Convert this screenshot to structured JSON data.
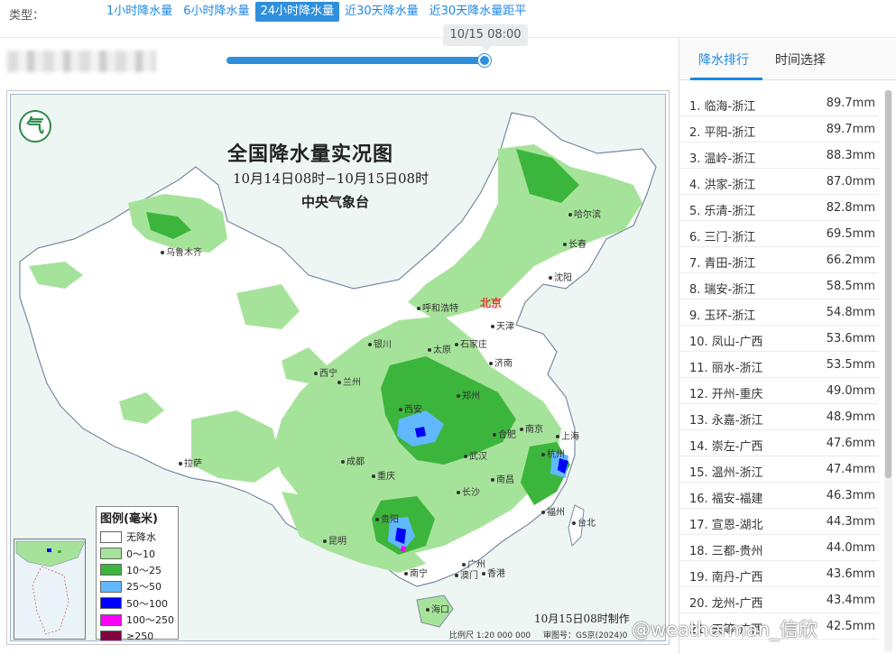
{
  "filter": {
    "type_label": "类型：",
    "tabs": [
      {
        "label": "1小时降水量"
      },
      {
        "label": "6小时降水量"
      },
      {
        "label": "24小时降水量",
        "active": true
      },
      {
        "label": "近30天降水量"
      },
      {
        "label": "近30天降水量距平"
      }
    ]
  },
  "slider": {
    "time_label": "10/15 08:00",
    "position": 1.0
  },
  "map": {
    "title": "全国降水量实况图",
    "subtitle": "10月14日08时−10月15日08时",
    "agency": "中央气象台",
    "made_time": "10月15日08时制作",
    "scale": "比例尺 1:20 000 000",
    "review": "审图号：GS京(2024)0",
    "cities": {
      "harbin": "哈尔滨",
      "changchun": "长春",
      "shenyang": "沈阳",
      "beijing": "北京",
      "tianjin": "天津",
      "hohhot": "呼和浩特",
      "shijiazhuang": "石家庄",
      "taiyuan": "太原",
      "jinan": "济南",
      "yinchuan": "银川",
      "xining": "西宁",
      "lanzhou": "兰州",
      "xian": "西安",
      "zhengzhou": "郑州",
      "hefei": "合肥",
      "nanjing": "南京",
      "shanghai": "上海",
      "hangzhou": "杭州",
      "wuhan": "武汉",
      "chengdu": "成都",
      "chongqing": "重庆",
      "changsha": "长沙",
      "nanchang": "南昌",
      "fuzhou": "福州",
      "taibei": "台北",
      "guiyang": "贵阳",
      "kunming": "昆明",
      "nanning": "南宁",
      "guangzhou": "广州",
      "hongkong": "香港",
      "macau": "澳门",
      "haikou": "海口",
      "lhasa": "拉萨",
      "urumqi": "乌鲁木齐"
    },
    "legend": {
      "title": "图例(毫米)",
      "items": [
        {
          "label": "无降水",
          "color": "#ffffff"
        },
        {
          "label": "0～10",
          "color": "#a6e39a"
        },
        {
          "label": "10～25",
          "color": "#3cb53c"
        },
        {
          "label": "25～50",
          "color": "#61b8ff"
        },
        {
          "label": "50～100",
          "color": "#0000fe"
        },
        {
          "label": "100～250",
          "color": "#fa00fa"
        },
        {
          "label": "≥250",
          "color": "#800040"
        }
      ]
    }
  },
  "ranking": {
    "tabs": [
      "降水排行",
      "时间选择"
    ],
    "items": [
      {
        "name": "1. 临海-浙江",
        "value": "89.7mm"
      },
      {
        "name": "2. 平阳-浙江",
        "value": "89.7mm"
      },
      {
        "name": "3. 温岭-浙江",
        "value": "88.3mm"
      },
      {
        "name": "4. 洪家-浙江",
        "value": "87.0mm"
      },
      {
        "name": "5. 乐清-浙江",
        "value": "82.8mm"
      },
      {
        "name": "6. 三门-浙江",
        "value": "69.5mm"
      },
      {
        "name": "7. 青田-浙江",
        "value": "66.2mm"
      },
      {
        "name": "8. 瑞安-浙江",
        "value": "58.5mm"
      },
      {
        "name": "9. 玉环-浙江",
        "value": "54.8mm"
      },
      {
        "name": "10. 凤山-广西",
        "value": "53.6mm"
      },
      {
        "name": "11. 丽水-浙江",
        "value": "53.5mm"
      },
      {
        "name": "12. 开州-重庆",
        "value": "49.0mm"
      },
      {
        "name": "13. 永嘉-浙江",
        "value": "48.9mm"
      },
      {
        "name": "14. 崇左-广西",
        "value": "47.6mm"
      },
      {
        "name": "15. 温州-浙江",
        "value": "47.4mm"
      },
      {
        "name": "16. 福安-福建",
        "value": "46.3mm"
      },
      {
        "name": "17. 宣恩-湖北",
        "value": "44.3mm"
      },
      {
        "name": "18. 三都-贵州",
        "value": "44.0mm"
      },
      {
        "name": "19. 南丹-广西",
        "value": "43.6mm"
      },
      {
        "name": "20. 龙州-广西",
        "value": "43.4mm"
      },
      {
        "name": "21. 天等-广西",
        "value": "42.5mm"
      }
    ]
  },
  "watermark": "@weatherman_信欣"
}
